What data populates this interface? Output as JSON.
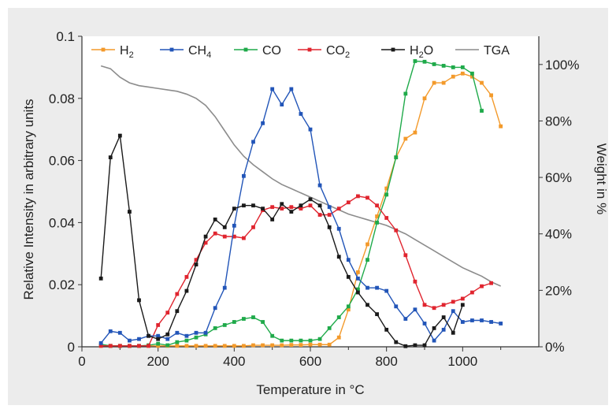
{
  "chart_data": {
    "type": "line",
    "xlabel": "Temperature in °C",
    "ylabel": "Relative Intensity in arbitrary units",
    "y2label": "Weight in %",
    "xlim": [
      0,
      1200
    ],
    "ylim": [
      0,
      0.1
    ],
    "y2lim": [
      0,
      110
    ],
    "x_ticks": [
      "0",
      "200",
      "400",
      "600",
      "800",
      "1000"
    ],
    "y_ticks": [
      "0",
      "0.02",
      "0.04",
      "0.06",
      "0.08",
      "0.1"
    ],
    "y2_ticks": [
      "0%",
      "20%",
      "40%",
      "60%",
      "80%",
      "100%"
    ],
    "legend_position": "top",
    "series": [
      {
        "name": "H2",
        "color": "#f39a2b",
        "marker": "square",
        "axis": "left",
        "points": [
          [
            50,
            0.0003
          ],
          [
            75,
            0.0003
          ],
          [
            100,
            0.0003
          ],
          [
            125,
            0.0003
          ],
          [
            150,
            0.0003
          ],
          [
            175,
            0.0003
          ],
          [
            200,
            0.0003
          ],
          [
            225,
            0.0003
          ],
          [
            250,
            0.0003
          ],
          [
            275,
            0.0003
          ],
          [
            300,
            0.0003
          ],
          [
            325,
            0.0003
          ],
          [
            350,
            0.0003
          ],
          [
            375,
            0.0003
          ],
          [
            400,
            0.0003
          ],
          [
            425,
            0.0003
          ],
          [
            450,
            0.0005
          ],
          [
            475,
            0.0005
          ],
          [
            500,
            0.0005
          ],
          [
            525,
            0.0005
          ],
          [
            550,
            0.0006
          ],
          [
            575,
            0.0006
          ],
          [
            600,
            0.0007
          ],
          [
            625,
            0.0007
          ],
          [
            650,
            0.0007
          ],
          [
            675,
            0.003
          ],
          [
            700,
            0.012
          ],
          [
            725,
            0.024
          ],
          [
            750,
            0.033
          ],
          [
            775,
            0.042
          ],
          [
            800,
            0.051
          ],
          [
            825,
            0.061
          ],
          [
            850,
            0.067
          ],
          [
            875,
            0.069
          ],
          [
            900,
            0.08
          ],
          [
            925,
            0.085
          ],
          [
            950,
            0.085
          ],
          [
            975,
            0.087
          ],
          [
            1000,
            0.088
          ],
          [
            1025,
            0.087
          ],
          [
            1050,
            0.085
          ],
          [
            1075,
            0.081
          ],
          [
            1100,
            0.071
          ]
        ]
      },
      {
        "name": "CH4",
        "color": "#2255b8",
        "marker": "square",
        "axis": "left",
        "points": [
          [
            50,
            0.0012
          ],
          [
            75,
            0.005
          ],
          [
            100,
            0.0045
          ],
          [
            125,
            0.002
          ],
          [
            150,
            0.0025
          ],
          [
            175,
            0.0035
          ],
          [
            200,
            0.0035
          ],
          [
            225,
            0.0025
          ],
          [
            250,
            0.0045
          ],
          [
            275,
            0.0035
          ],
          [
            300,
            0.0045
          ],
          [
            325,
            0.0045
          ],
          [
            350,
            0.0125
          ],
          [
            375,
            0.019
          ],
          [
            400,
            0.039
          ],
          [
            425,
            0.055
          ],
          [
            450,
            0.066
          ],
          [
            475,
            0.072
          ],
          [
            500,
            0.083
          ],
          [
            525,
            0.078
          ],
          [
            550,
            0.083
          ],
          [
            575,
            0.075
          ],
          [
            600,
            0.07
          ],
          [
            625,
            0.052
          ],
          [
            650,
            0.045
          ],
          [
            675,
            0.038
          ],
          [
            700,
            0.028
          ],
          [
            725,
            0.022
          ],
          [
            750,
            0.019
          ],
          [
            775,
            0.019
          ],
          [
            800,
            0.018
          ],
          [
            825,
            0.013
          ],
          [
            850,
            0.009
          ],
          [
            875,
            0.012
          ],
          [
            900,
            0.0075
          ],
          [
            925,
            0.002
          ],
          [
            950,
            0.0055
          ],
          [
            975,
            0.0115
          ],
          [
            1000,
            0.008
          ],
          [
            1025,
            0.0085
          ],
          [
            1050,
            0.0085
          ],
          [
            1075,
            0.008
          ],
          [
            1100,
            0.0075
          ]
        ]
      },
      {
        "name": "CO",
        "color": "#1faa4a",
        "marker": "square",
        "axis": "left",
        "points": [
          [
            50,
            0.0008
          ],
          [
            75,
            0.0003
          ],
          [
            100,
            0.0003
          ],
          [
            125,
            0.0003
          ],
          [
            150,
            0.0003
          ],
          [
            175,
            0.0005
          ],
          [
            200,
            0.001
          ],
          [
            225,
            0.0005
          ],
          [
            250,
            0.0015
          ],
          [
            275,
            0.002
          ],
          [
            300,
            0.003
          ],
          [
            325,
            0.004
          ],
          [
            350,
            0.006
          ],
          [
            375,
            0.007
          ],
          [
            400,
            0.008
          ],
          [
            425,
            0.009
          ],
          [
            450,
            0.0095
          ],
          [
            475,
            0.008
          ],
          [
            500,
            0.0035
          ],
          [
            525,
            0.002
          ],
          [
            550,
            0.002
          ],
          [
            575,
            0.002
          ],
          [
            600,
            0.002
          ],
          [
            625,
            0.0025
          ],
          [
            650,
            0.006
          ],
          [
            675,
            0.0095
          ],
          [
            700,
            0.013
          ],
          [
            725,
            0.0185
          ],
          [
            750,
            0.028
          ],
          [
            775,
            0.04
          ],
          [
            800,
            0.049
          ],
          [
            825,
            0.061
          ],
          [
            850,
            0.0815
          ],
          [
            875,
            0.092
          ],
          [
            900,
            0.0918
          ],
          [
            925,
            0.091
          ],
          [
            950,
            0.0905
          ],
          [
            975,
            0.09
          ],
          [
            1000,
            0.09
          ],
          [
            1025,
            0.088
          ],
          [
            1050,
            0.076
          ]
        ]
      },
      {
        "name": "CO2",
        "color": "#e0252f",
        "marker": "square",
        "axis": "left",
        "points": [
          [
            50,
            0.0003
          ],
          [
            75,
            0.0003
          ],
          [
            100,
            0.0003
          ],
          [
            125,
            0.0003
          ],
          [
            150,
            0.0003
          ],
          [
            175,
            0.0003
          ],
          [
            200,
            0.007
          ],
          [
            225,
            0.011
          ],
          [
            250,
            0.017
          ],
          [
            275,
            0.0225
          ],
          [
            300,
            0.028
          ],
          [
            325,
            0.0335
          ],
          [
            350,
            0.0365
          ],
          [
            375,
            0.0355
          ],
          [
            400,
            0.0355
          ],
          [
            425,
            0.035
          ],
          [
            450,
            0.0385
          ],
          [
            475,
            0.044
          ],
          [
            500,
            0.045
          ],
          [
            525,
            0.0445
          ],
          [
            550,
            0.045
          ],
          [
            575,
            0.0445
          ],
          [
            600,
            0.0455
          ],
          [
            625,
            0.0425
          ],
          [
            650,
            0.0425
          ],
          [
            675,
            0.0445
          ],
          [
            700,
            0.0465
          ],
          [
            725,
            0.0485
          ],
          [
            750,
            0.048
          ],
          [
            775,
            0.0455
          ],
          [
            800,
            0.0415
          ],
          [
            825,
            0.0375
          ],
          [
            850,
            0.0295
          ],
          [
            875,
            0.021
          ],
          [
            900,
            0.0135
          ],
          [
            925,
            0.0125
          ],
          [
            950,
            0.0135
          ],
          [
            975,
            0.0145
          ],
          [
            1000,
            0.0155
          ],
          [
            1025,
            0.0175
          ],
          [
            1050,
            0.0195
          ],
          [
            1075,
            0.0205
          ]
        ]
      },
      {
        "name": "H2O",
        "color": "#1a1a1a",
        "marker": "square",
        "axis": "left",
        "points": [
          [
            50,
            0.022
          ],
          [
            75,
            0.061
          ],
          [
            100,
            0.068
          ],
          [
            125,
            0.0435
          ],
          [
            150,
            0.015
          ],
          [
            175,
            0.0035
          ],
          [
            200,
            0.0025
          ],
          [
            225,
            0.004
          ],
          [
            250,
            0.0115
          ],
          [
            275,
            0.018
          ],
          [
            300,
            0.0265
          ],
          [
            325,
            0.0355
          ],
          [
            350,
            0.041
          ],
          [
            375,
            0.0385
          ],
          [
            400,
            0.0445
          ],
          [
            425,
            0.0455
          ],
          [
            450,
            0.0455
          ],
          [
            475,
            0.0445
          ],
          [
            500,
            0.041
          ],
          [
            525,
            0.046
          ],
          [
            550,
            0.0435
          ],
          [
            575,
            0.0455
          ],
          [
            600,
            0.0475
          ],
          [
            625,
            0.0455
          ],
          [
            650,
            0.0385
          ],
          [
            675,
            0.029
          ],
          [
            700,
            0.0225
          ],
          [
            725,
            0.0175
          ],
          [
            750,
            0.0135
          ],
          [
            775,
            0.0105
          ],
          [
            800,
            0.0055
          ],
          [
            825,
            0.0015
          ],
          [
            850,
            0.0002
          ],
          [
            875,
            0.0005
          ],
          [
            900,
            0.0005
          ],
          [
            925,
            0.006
          ],
          [
            950,
            0.0095
          ],
          [
            975,
            0.0045
          ],
          [
            1000,
            0.0135
          ]
        ]
      },
      {
        "name": "TGA",
        "color": "#8c8c8c",
        "marker": "none",
        "axis": "right",
        "points": [
          [
            50,
            99.5
          ],
          [
            75,
            98.5
          ],
          [
            100,
            95.5
          ],
          [
            125,
            93.5
          ],
          [
            150,
            92.5
          ],
          [
            175,
            92
          ],
          [
            200,
            91.5
          ],
          [
            225,
            91
          ],
          [
            250,
            90.5
          ],
          [
            275,
            89.5
          ],
          [
            300,
            88
          ],
          [
            325,
            85.5
          ],
          [
            350,
            81.5
          ],
          [
            375,
            76.5
          ],
          [
            400,
            71.5
          ],
          [
            425,
            67.5
          ],
          [
            450,
            64.5
          ],
          [
            475,
            62
          ],
          [
            500,
            59.5
          ],
          [
            525,
            57.5
          ],
          [
            550,
            56
          ],
          [
            575,
            54.5
          ],
          [
            600,
            53
          ],
          [
            625,
            51.5
          ],
          [
            650,
            50
          ],
          [
            675,
            48.5
          ],
          [
            700,
            47
          ],
          [
            725,
            46
          ],
          [
            750,
            45
          ],
          [
            775,
            44
          ],
          [
            800,
            43
          ],
          [
            825,
            41.5
          ],
          [
            850,
            40
          ],
          [
            875,
            38
          ],
          [
            900,
            36
          ],
          [
            925,
            34
          ],
          [
            950,
            32
          ],
          [
            975,
            30
          ],
          [
            1000,
            28
          ],
          [
            1025,
            26.5
          ],
          [
            1050,
            25
          ],
          [
            1075,
            23
          ],
          [
            1100,
            21.5
          ]
        ]
      }
    ]
  },
  "legend": {
    "items": [
      {
        "label": "H",
        "sub": "2"
      },
      {
        "label": "CH",
        "sub": "4"
      },
      {
        "label": "CO",
        "sub": ""
      },
      {
        "label": "CO",
        "sub": "2"
      },
      {
        "label": "H",
        "sub": "2",
        "suffix": "O"
      },
      {
        "label": "TGA",
        "sub": ""
      }
    ]
  }
}
